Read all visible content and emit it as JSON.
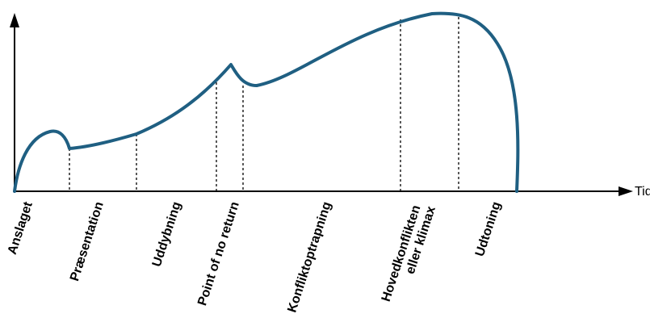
{
  "diagram": {
    "x_axis_label": "Tid",
    "curve_color": "#1f5f82",
    "phases": [
      {
        "id": "anslaget",
        "lines": [
          "Anslaget"
        ]
      },
      {
        "id": "praesentation",
        "lines": [
          "Præsentation"
        ]
      },
      {
        "id": "uddybning",
        "lines": [
          "Uddybning"
        ]
      },
      {
        "id": "point-of-no-return",
        "lines": [
          "Point of no return"
        ]
      },
      {
        "id": "konfliktoptrapning",
        "lines": [
          "Konfliktoptrapning"
        ]
      },
      {
        "id": "hovedkonflikten",
        "lines": [
          "Hovedkonflikten",
          "eller klimax"
        ]
      },
      {
        "id": "udtoning",
        "lines": [
          "Udtoning"
        ]
      }
    ]
  }
}
